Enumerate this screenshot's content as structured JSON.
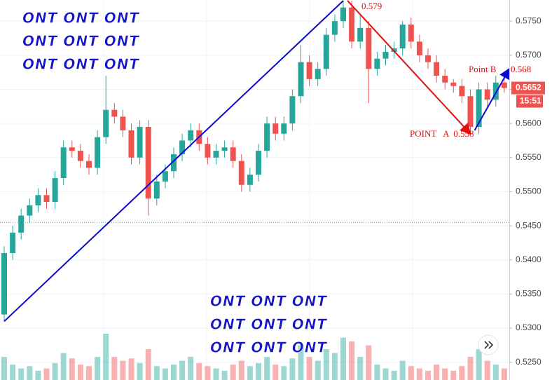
{
  "chart_data": {
    "type": "candlestick",
    "open": [
      0.532,
      0.541,
      0.544,
      0.5465,
      0.548,
      0.5495,
      0.5485,
      0.552,
      0.5565,
      0.556,
      0.5545,
      0.5535,
      0.558,
      0.562,
      0.561,
      0.559,
      0.555,
      0.5595,
      0.549,
      0.5515,
      0.553,
      0.5555,
      0.5575,
      0.559,
      0.557,
      0.555,
      0.556,
      0.5565,
      0.5545,
      0.551,
      0.5525,
      0.556,
      0.56,
      0.5585,
      0.56,
      0.564,
      0.569,
      0.5665,
      0.568,
      0.573,
      0.575,
      0.577,
      0.572,
      0.574,
      0.568,
      0.5695,
      0.5705,
      0.571,
      0.5745,
      0.572,
      0.57,
      0.569,
      0.567,
      0.566,
      0.5655,
      0.564,
      0.5595,
      0.565,
      0.5635,
      0.566
    ],
    "high": [
      0.542,
      0.545,
      0.5475,
      0.549,
      0.5505,
      0.5505,
      0.553,
      0.5575,
      0.5575,
      0.557,
      0.5555,
      0.559,
      0.567,
      0.563,
      0.562,
      0.56,
      0.5605,
      0.5605,
      0.5525,
      0.554,
      0.5565,
      0.5585,
      0.56,
      0.56,
      0.558,
      0.557,
      0.5575,
      0.5575,
      0.5555,
      0.5535,
      0.557,
      0.561,
      0.561,
      0.561,
      0.565,
      0.5715,
      0.57,
      0.569,
      0.574,
      0.576,
      0.578,
      0.578,
      0.576,
      0.575,
      0.5705,
      0.5715,
      0.572,
      0.575,
      0.5755,
      0.573,
      0.571,
      0.57,
      0.568,
      0.5665,
      0.5665,
      0.565,
      0.566,
      0.566,
      0.567,
      0.567
    ],
    "low": [
      0.531,
      0.54,
      0.543,
      0.5455,
      0.547,
      0.5475,
      0.5475,
      0.551,
      0.555,
      0.5535,
      0.5525,
      0.5525,
      0.557,
      0.56,
      0.558,
      0.554,
      0.554,
      0.5465,
      0.548,
      0.5505,
      0.552,
      0.5545,
      0.5565,
      0.556,
      0.554,
      0.554,
      0.555,
      0.5535,
      0.55,
      0.55,
      0.5515,
      0.555,
      0.5575,
      0.5575,
      0.559,
      0.563,
      0.5655,
      0.5655,
      0.567,
      0.572,
      0.574,
      0.571,
      0.571,
      0.563,
      0.567,
      0.5685,
      0.5695,
      0.57,
      0.571,
      0.569,
      0.568,
      0.566,
      0.565,
      0.5645,
      0.563,
      0.5585,
      0.5585,
      0.5625,
      0.5625,
      0.5645
    ],
    "close": [
      0.541,
      0.544,
      0.5465,
      0.548,
      0.5495,
      0.5485,
      0.552,
      0.5565,
      0.556,
      0.5545,
      0.5535,
      0.558,
      0.562,
      0.561,
      0.559,
      0.555,
      0.5595,
      0.549,
      0.5515,
      0.553,
      0.5555,
      0.5575,
      0.559,
      0.557,
      0.555,
      0.556,
      0.5565,
      0.5545,
      0.551,
      0.5525,
      0.556,
      0.56,
      0.5585,
      0.56,
      0.564,
      0.569,
      0.5665,
      0.568,
      0.573,
      0.575,
      0.577,
      0.572,
      0.574,
      0.568,
      0.5695,
      0.5705,
      0.571,
      0.5745,
      0.572,
      0.57,
      0.569,
      0.567,
      0.566,
      0.5655,
      0.564,
      0.5595,
      0.565,
      0.5635,
      0.566,
      0.5652
    ],
    "volume": [
      30,
      20,
      15,
      18,
      12,
      15,
      22,
      35,
      28,
      20,
      18,
      30,
      60,
      30,
      25,
      28,
      22,
      40,
      18,
      15,
      20,
      25,
      30,
      22,
      18,
      15,
      12,
      20,
      25,
      18,
      22,
      30,
      20,
      18,
      28,
      45,
      30,
      25,
      40,
      35,
      55,
      50,
      30,
      45,
      20,
      15,
      12,
      25,
      18,
      15,
      12,
      20,
      15,
      12,
      18,
      30,
      40,
      25,
      20,
      15
    ],
    "vlim": [
      0,
      100
    ],
    "ylim": [
      0.5224,
      0.5781
    ],
    "yticks": [
      {
        "value": 0.525,
        "label": "0.5250"
      },
      {
        "value": 0.53,
        "label": "0.5300"
      },
      {
        "value": 0.535,
        "label": "0.5350"
      },
      {
        "value": 0.54,
        "label": "0.5400"
      },
      {
        "value": 0.545,
        "label": "0.5450"
      },
      {
        "value": 0.55,
        "label": "0.5500"
      },
      {
        "value": 0.555,
        "label": "0.5550"
      },
      {
        "value": 0.56,
        "label": "0.5600"
      },
      {
        "value": 0.565,
        "label": "0.5650"
      },
      {
        "value": 0.57,
        "label": "0.5700"
      },
      {
        "value": 0.575,
        "label": "0.5750"
      }
    ],
    "grid": true,
    "up_color": "#26a69a",
    "down_color": "#ef5350",
    "price_line": 0.5455,
    "last_price": 0.5652,
    "countdown": "15:51",
    "trendlines": [
      {
        "from": [
          0,
          0.531
        ],
        "to": [
          40,
          0.578
        ],
        "color": "#0a0ad0"
      },
      {
        "from": [
          40.5,
          0.578
        ],
        "to": [
          55,
          0.5585
        ],
        "color": "#e01010"
      },
      {
        "from": [
          55.5,
          0.559
        ],
        "to": [
          59.6,
          0.568
        ],
        "color": "#0a0ad0"
      }
    ],
    "annotations": [
      "0.579",
      "Point B",
      "0.568",
      "POINT   A  0.558"
    ],
    "watermark": [
      "ONT ONT ONT",
      "ONT ONT ONT",
      "ONT ONT ONT",
      "ONT ONT ONT",
      "ONT ONT ONT",
      "ONT ONT ONT"
    ]
  }
}
